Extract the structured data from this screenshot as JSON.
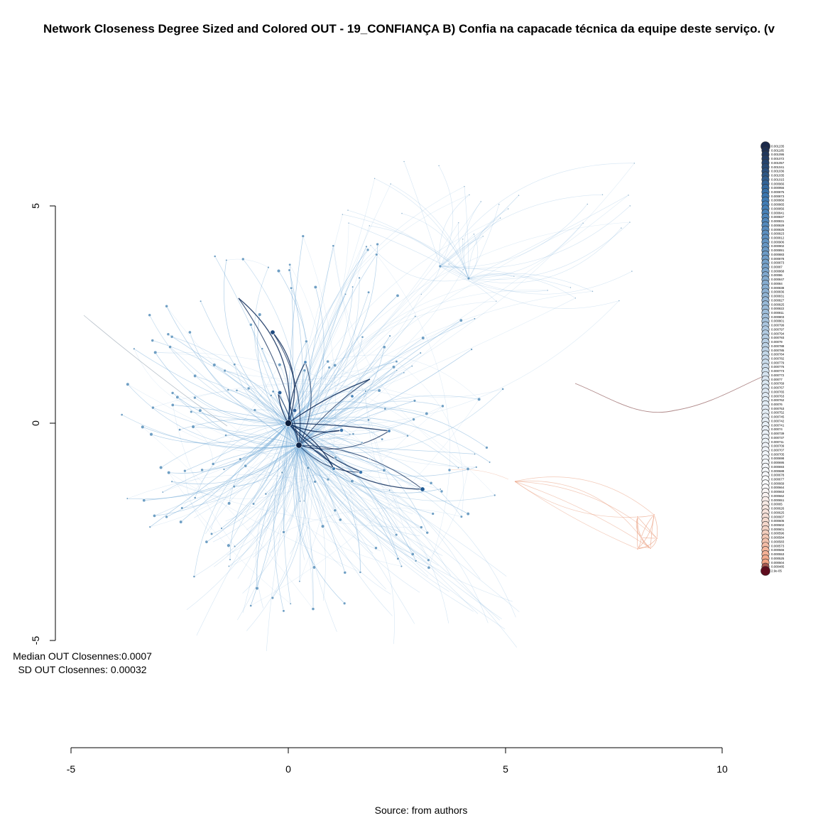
{
  "chart_data": {
    "type": "network",
    "title": "Network Closeness Degree Sized and Colored OUT - 19_CONFIANÇA B) Confia na capacade técnica da equipe deste serviço. (v",
    "x_axis": {
      "range": [
        -5,
        10
      ],
      "ticks": [
        "-5",
        "0",
        "5",
        "10"
      ]
    },
    "y_axis": {
      "range": [
        -5,
        5
      ],
      "ticks": [
        "-5",
        "0",
        "5"
      ]
    },
    "stats": {
      "median": "Median OUT Closennes:0.0007",
      "sd": "SD OUT Closennes: 0.00032"
    },
    "source": "Source: from authors",
    "legend": {
      "placement": "right",
      "values": [
        "0.001235",
        "0.001185",
        "0.001095",
        "0.001072",
        "0.001057",
        "0.001041",
        "0.001036",
        "0.001035",
        "0.001015",
        "0.000966",
        "0.000956",
        "0.000875",
        "0.000873",
        "0.000866",
        "0.000865",
        "0.000856",
        "0.000841",
        "0.000837",
        "0.000831",
        "0.000829",
        "0.000825",
        "0.000823",
        "0.000812",
        "0.000906",
        "0.000902",
        "0.000891",
        "0.000883",
        "0.000878",
        "0.000873",
        "0.00087",
        "0.000868",
        "0.00086",
        "0.000847",
        "0.00084",
        "0.000838",
        "0.000836",
        "0.000831",
        "0.000827",
        "0.000825",
        "0.000822",
        "0.000811",
        "0.000803",
        "0.000801",
        "0.000799",
        "0.000797",
        "0.000794",
        "0.000793",
        "0.00079",
        "0.000788",
        "0.000785",
        "0.000784",
        "0.000782",
        "0.000779",
        "0.000776",
        "0.000773",
        "0.000772",
        "0.00077",
        "0.000769",
        "0.000767",
        "0.000765",
        "0.000763",
        "0.000762",
        "0.00076",
        "0.000753",
        "0.000752",
        "0.000745",
        "0.000742",
        "0.000741",
        "0.00074",
        "0.000739",
        "0.000737",
        "0.000711",
        "0.000709",
        "0.000707",
        "0.000705",
        "0.000698",
        "0.000695",
        "0.000693",
        "0.000688",
        "0.000678",
        "0.000677",
        "0.000669",
        "0.000664",
        "0.000663",
        "0.000662",
        "0.000651",
        "0.00065",
        "0.000626",
        "0.000625",
        "0.000607",
        "0.000605",
        "0.000602",
        "0.000601",
        "0.000596",
        "0.000584",
        "0.000583",
        "0.000573",
        "0.000566",
        "0.000553",
        "0.000525",
        "0.000504",
        "0.000485",
        "2.9e-05"
      ],
      "colors": {
        "high": "#1b2a4a",
        "mid_high": "#3b78b2",
        "mid": "#d9e6f1",
        "mid_low": "#f3d4c7",
        "low": "#f4a686",
        "lowest": "#5e0d1e"
      }
    },
    "colors": {
      "edge_blue": "#6fa8d6",
      "edge_dark": "#0d2b5a",
      "edge_red": "#e8936f",
      "long_edge": "#9b6a6a"
    }
  }
}
